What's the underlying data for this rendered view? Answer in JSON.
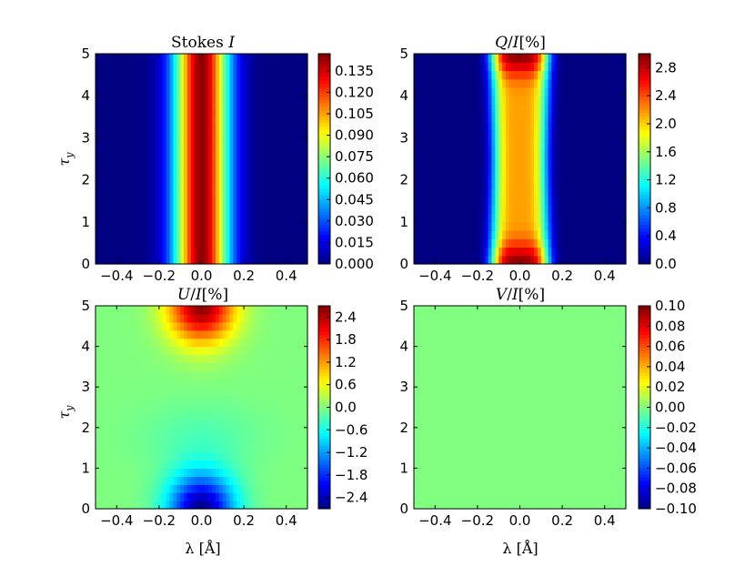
{
  "chart_data": [
    {
      "type": "heatmap",
      "id": "stokes-i",
      "title": "Stokes I",
      "title_parts": [
        "Stokes ",
        "I"
      ],
      "xlabel": "",
      "ylabel": "τ_y",
      "ylabel_parts": [
        "τ",
        "y"
      ],
      "x_ticks": [
        "−0.4",
        "−0.2",
        "0.0",
        "0.2",
        "0.4"
      ],
      "x_tick_values": [
        -0.4,
        -0.2,
        0.0,
        0.2,
        0.4
      ],
      "y_ticks": [
        "0",
        "1",
        "2",
        "3",
        "4",
        "5"
      ],
      "xlim": [
        -0.5,
        0.5
      ],
      "ylim": [
        0,
        5
      ],
      "colormap": "jet",
      "colorbar": {
        "ticks": [
          "0.000",
          "0.015",
          "0.030",
          "0.045",
          "0.060",
          "0.075",
          "0.090",
          "0.105",
          "0.120",
          "0.135"
        ],
        "tick_values": [
          0.0,
          0.015,
          0.03,
          0.045,
          0.06,
          0.075,
          0.09,
          0.105,
          0.12,
          0.135
        ],
        "min": 0.0,
        "max": 0.147
      },
      "model": "gauss",
      "params": {
        "peak": 0.145,
        "sigma": 0.09
      }
    },
    {
      "type": "heatmap",
      "id": "q-over-i",
      "title": "Q/I[%]",
      "title_parts": [
        "Q",
        "/",
        "I",
        "[%]"
      ],
      "xlabel": "",
      "ylabel": "",
      "x_ticks": [
        "−0.4",
        "−0.2",
        "0.0",
        "0.2",
        "0.4"
      ],
      "x_tick_values": [
        -0.4,
        -0.2,
        0.0,
        0.2,
        0.4
      ],
      "y_ticks": [
        "0",
        "1",
        "2",
        "3",
        "4",
        "5"
      ],
      "xlim": [
        -0.5,
        0.5
      ],
      "ylim": [
        0,
        5
      ],
      "colormap": "jet",
      "colorbar": {
        "ticks": [
          "0.0",
          "0.4",
          "0.8",
          "1.2",
          "1.6",
          "2.0",
          "2.4",
          "2.8"
        ],
        "tick_values": [
          0.0,
          0.4,
          0.8,
          1.2,
          1.6,
          2.0,
          2.4,
          2.8
        ],
        "min": 0.0,
        "max": 3.0
      },
      "model": "q",
      "params": {
        "peak": 2.95,
        "center_dip": 2.15
      }
    },
    {
      "type": "heatmap",
      "id": "u-over-i",
      "title": "U/I[%]",
      "title_parts": [
        "U",
        "/",
        "I",
        "[%]"
      ],
      "xlabel": "λ [Å]",
      "ylabel": "τ_y",
      "ylabel_parts": [
        "τ",
        "y"
      ],
      "x_ticks": [
        "−0.4",
        "−0.2",
        "0.0",
        "0.2",
        "0.4"
      ],
      "x_tick_values": [
        -0.4,
        -0.2,
        0.0,
        0.2,
        0.4
      ],
      "y_ticks": [
        "0",
        "1",
        "2",
        "3",
        "4",
        "5"
      ],
      "xlim": [
        -0.5,
        0.5
      ],
      "ylim": [
        0,
        5
      ],
      "colormap": "jet",
      "colorbar": {
        "ticks": [
          "−2.4",
          "−1.8",
          "−1.2",
          "−0.6",
          "0.0",
          "0.6",
          "1.2",
          "1.8",
          "2.4"
        ],
        "tick_values": [
          -2.4,
          -1.8,
          -1.2,
          -0.6,
          0.0,
          0.6,
          1.2,
          1.8,
          2.4
        ],
        "min": -2.7,
        "max": 2.7
      },
      "model": "u",
      "params": {
        "top": 2.6,
        "bottom": -2.6
      }
    },
    {
      "type": "heatmap",
      "id": "v-over-i",
      "title": "V/I[%]",
      "title_parts": [
        "V",
        "/",
        "I",
        "[%]"
      ],
      "xlabel": "λ [Å]",
      "ylabel": "",
      "x_ticks": [
        "−0.4",
        "−0.2",
        "0.0",
        "0.2",
        "0.4"
      ],
      "x_tick_values": [
        -0.4,
        -0.2,
        0.0,
        0.2,
        0.4
      ],
      "y_ticks": [
        "0",
        "1",
        "2",
        "3",
        "4",
        "5"
      ],
      "xlim": [
        -0.5,
        0.5
      ],
      "ylim": [
        0,
        5
      ],
      "colormap": "jet",
      "colorbar": {
        "ticks": [
          "−0.10",
          "−0.08",
          "−0.06",
          "−0.04",
          "−0.02",
          "0.00",
          "0.02",
          "0.04",
          "0.06",
          "0.08",
          "0.10"
        ],
        "tick_values": [
          -0.1,
          -0.08,
          -0.06,
          -0.04,
          -0.02,
          0.0,
          0.02,
          0.04,
          0.06,
          0.08,
          0.1
        ],
        "min": -0.1,
        "max": 0.1
      },
      "model": "zero",
      "params": {}
    }
  ]
}
